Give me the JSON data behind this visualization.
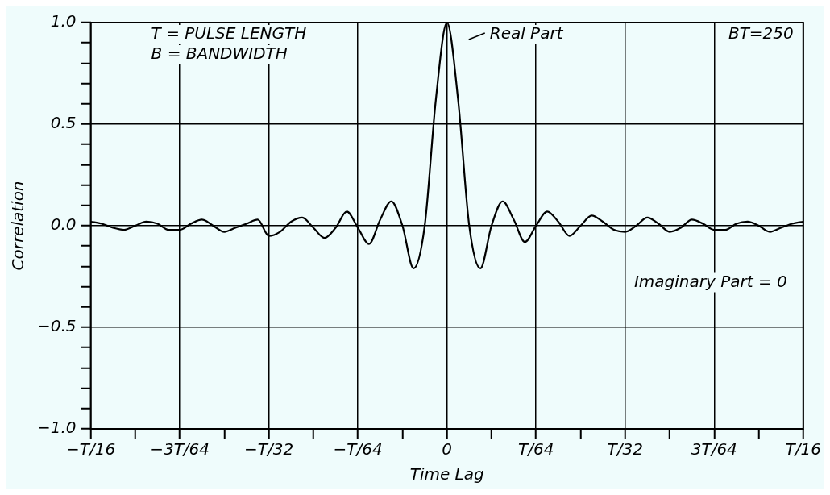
{
  "chart_data": {
    "type": "line",
    "xlabel": "Time Lag",
    "ylabel": "Correlation",
    "categories": [
      "−T/16",
      null,
      null,
      null,
      null,
      null,
      null,
      null,
      "−3T/64",
      null,
      null,
      null,
      null,
      null,
      null,
      null,
      "−T/32",
      null,
      null,
      null,
      null,
      null,
      null,
      null,
      "−T/64",
      null,
      null,
      null,
      null,
      null,
      null,
      null,
      "0",
      null,
      null,
      null,
      null,
      null,
      null,
      null,
      "T/64",
      null,
      null,
      null,
      null,
      null,
      null,
      null,
      "T/32",
      null,
      null,
      null,
      null,
      null,
      null,
      null,
      "3T/64",
      null,
      null,
      null,
      null,
      null,
      null,
      null,
      "T/16"
    ],
    "series": [
      {
        "color": "#000000",
        "values": [
          0.02,
          0.01,
          -0.01,
          -0.02,
          0,
          0.02,
          0.01,
          -0.02,
          -0.02,
          0.01,
          0.03,
          0,
          -0.03,
          -0.01,
          0.01,
          0.03,
          -0.05,
          -0.03,
          0.02,
          0.04,
          -0.01,
          -0.06,
          -0.01,
          0.07,
          -0.01,
          -0.09,
          0.03,
          0.12,
          0,
          -0.21,
          0,
          0.62,
          1,
          0.62,
          0,
          -0.21,
          0,
          0.12,
          0.03,
          -0.08,
          0,
          0.07,
          0.02,
          -0.05,
          0,
          0.05,
          0.02,
          -0.02,
          -0.03,
          0,
          0.04,
          0.01,
          -0.03,
          -0.01,
          0.03,
          0.01,
          -0.02,
          -0.02,
          0.01,
          0.02,
          0,
          -0.03,
          -0.01,
          0.01,
          0.02
        ]
      }
    ],
    "ylim": [
      -1,
      1
    ],
    "yticks": [
      {
        "value": -1,
        "label": "−1.0"
      },
      {
        "value": -0.9,
        "label": null
      },
      {
        "value": -0.8,
        "label": null
      },
      {
        "value": -0.7,
        "label": null
      },
      {
        "value": -0.6,
        "label": null
      },
      {
        "value": -0.5,
        "label": "−0.5"
      },
      {
        "value": -0.4,
        "label": null
      },
      {
        "value": -0.3,
        "label": null
      },
      {
        "value": -0.2,
        "label": null
      },
      {
        "value": -0.1,
        "label": null
      },
      {
        "value": 0,
        "label": "0.0"
      },
      {
        "value": 0.1,
        "label": null
      },
      {
        "value": 0.2,
        "label": null
      },
      {
        "value": 0.3,
        "label": null
      },
      {
        "value": 0.4,
        "label": null
      },
      {
        "value": 0.5,
        "label": "0.5"
      },
      {
        "value": 0.6,
        "label": null
      },
      {
        "value": 0.7,
        "label": null
      },
      {
        "value": 0.8,
        "label": null
      },
      {
        "value": 0.9,
        "label": null
      },
      {
        "value": 1,
        "label": "1.0"
      }
    ],
    "grid": true,
    "legend": false,
    "marker": "none",
    "line_style": "solid",
    "annotations": [
      "T = PULSE LENGTH",
      "B = BANDWIDTH",
      "Real Part",
      "BT=250",
      "Imaginary Part = 0"
    ]
  }
}
